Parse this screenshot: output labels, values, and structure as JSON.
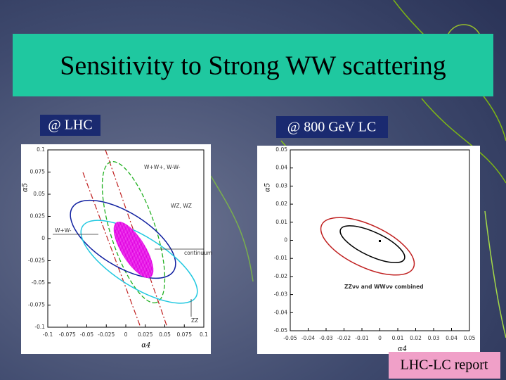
{
  "title": "Sensitivity to Strong WW scattering",
  "panels": [
    "@ LHC",
    "@ 800 GeV LC"
  ],
  "footer": "LHC-LC report",
  "chart_data": [
    {
      "type": "contour",
      "xlabel": "α4",
      "ylabel": "α5",
      "xlim": [
        -0.1,
        0.1
      ],
      "ylim": [
        -0.1,
        0.1
      ],
      "xticks": [
        -0.1,
        -0.075,
        -0.05,
        -0.025,
        0,
        0.025,
        0.05,
        0.075,
        0.1
      ],
      "yticks": [
        -0.1,
        -0.075,
        -0.05,
        -0.025,
        0,
        0.025,
        0.05,
        0.075,
        0.1
      ],
      "annotations": [
        "W+W+, W-W-",
        "WZ, WZ",
        "W+W-",
        "continuum",
        "ZZ"
      ]
    },
    {
      "type": "contour",
      "xlabel": "α4",
      "ylabel": "α5",
      "xlim": [
        -0.05,
        0.05
      ],
      "ylim": [
        -0.05,
        0.05
      ],
      "xticks": [
        -0.05,
        -0.04,
        -0.03,
        -0.02,
        -0.01,
        0,
        0.01,
        0.02,
        0.03,
        0.04,
        0.05
      ],
      "yticks": [
        -0.05,
        -0.04,
        -0.03,
        -0.02,
        -0.01,
        0,
        0.01,
        0.02,
        0.03,
        0.04,
        0.05
      ],
      "annotations": [
        "ZZνν and WWνν combined"
      ]
    }
  ]
}
